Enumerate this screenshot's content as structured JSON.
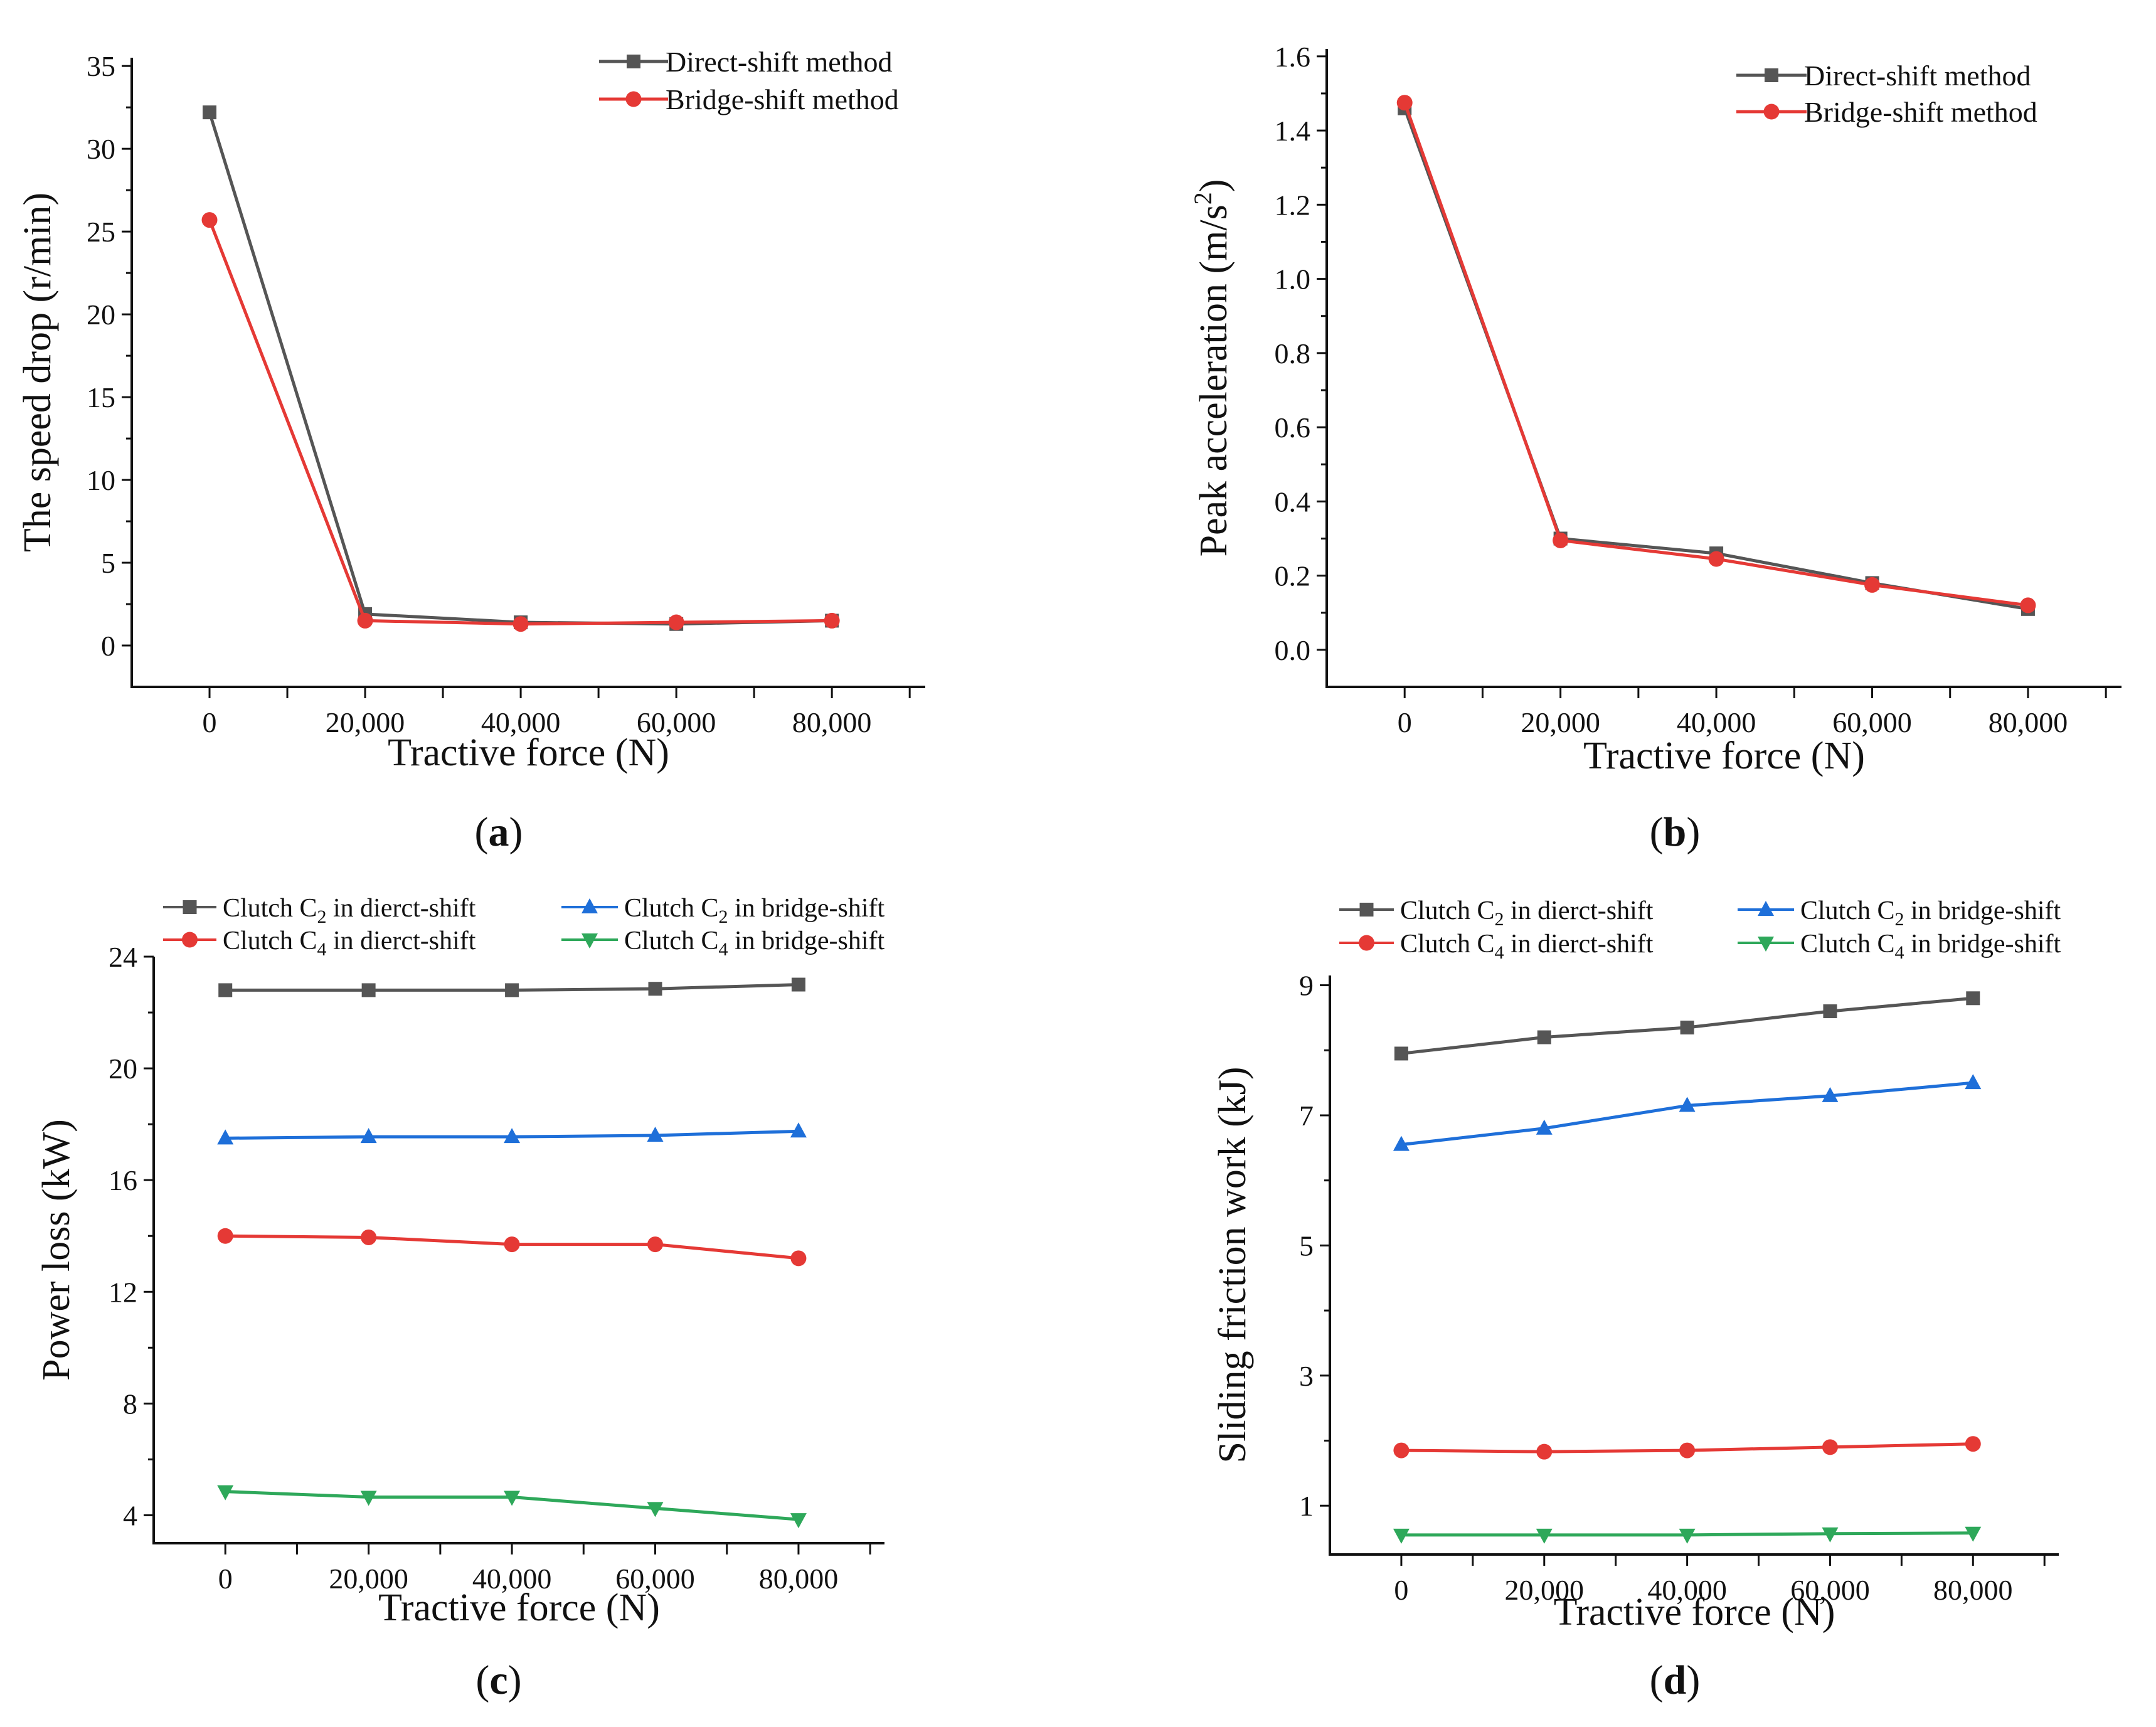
{
  "chart_data": [
    {
      "id": "a",
      "type": "line",
      "caption": "(a)",
      "caption_letter": "a",
      "xlabel": "Tractive force (N)",
      "ylabel": "The speed drop (r/min)",
      "x": [
        0,
        20000,
        40000,
        60000,
        80000
      ],
      "xticklabels": [
        "0",
        "20,000",
        "40,000",
        "60,000",
        "80,000"
      ],
      "xlim": [
        -10000,
        92000
      ],
      "ylim": [
        -2.5,
        35.5
      ],
      "yticks": [
        0,
        5,
        10,
        15,
        20,
        25,
        30,
        35
      ],
      "yticklabels": [
        "0",
        "5",
        "10",
        "15",
        "20",
        "25",
        "30",
        "35"
      ],
      "legend_position": "top-right",
      "series": [
        {
          "name": "Direct-shift method",
          "color": "#555555",
          "marker": "square",
          "values": [
            32.2,
            1.9,
            1.4,
            1.3,
            1.5
          ]
        },
        {
          "name": "Bridge-shift method",
          "color": "#e53935",
          "marker": "circle",
          "values": [
            25.7,
            1.5,
            1.3,
            1.4,
            1.5
          ]
        }
      ]
    },
    {
      "id": "b",
      "type": "line",
      "caption": "(b)",
      "caption_letter": "b",
      "xlabel": "Tractive force (N)",
      "ylabel_main": "Peak acceleration (m/s",
      "ylabel_sup": "2",
      "ylabel_end": ")",
      "x": [
        0,
        20000,
        40000,
        60000,
        80000
      ],
      "xticklabels": [
        "0",
        "20,000",
        "40,000",
        "60,000",
        "80,000"
      ],
      "xlim": [
        -10000,
        92000
      ],
      "ylim": [
        -0.1,
        1.62
      ],
      "yticks": [
        0,
        0.2,
        0.4,
        0.6,
        0.8,
        1.0,
        1.2,
        1.4,
        1.6
      ],
      "yticklabels": [
        "0.0",
        "0.2",
        "0.4",
        "0.6",
        "0.8",
        "1.0",
        "1.2",
        "1.4",
        "1.6"
      ],
      "legend_position": "top-right",
      "series": [
        {
          "name": "Direct-shift method",
          "color": "#555555",
          "marker": "square",
          "values": [
            1.46,
            0.3,
            0.26,
            0.18,
            0.11
          ]
        },
        {
          "name": "Bridge-shift method",
          "color": "#e53935",
          "marker": "circle",
          "values": [
            1.475,
            0.295,
            0.245,
            0.175,
            0.12
          ]
        }
      ]
    },
    {
      "id": "c",
      "type": "line",
      "caption": "(c)",
      "caption_letter": "c",
      "xlabel": "Tractive force (N)",
      "ylabel": "Power loss (kW)",
      "x": [
        0,
        20000,
        40000,
        60000,
        80000
      ],
      "xticklabels": [
        "0",
        "20,000",
        "40,000",
        "60,000",
        "80,000"
      ],
      "xlim": [
        -10000,
        92000
      ],
      "ylim": [
        3.0,
        24.0
      ],
      "yticks": [
        4,
        8,
        12,
        16,
        20,
        24
      ],
      "yticklabels": [
        "4",
        "8",
        "12",
        "16",
        "20",
        "24"
      ],
      "legend_position": "top",
      "series": [
        {
          "name": "Clutch C2 in dierct-shift",
          "label_pre": "Clutch C",
          "label_sub": "2",
          "label_post": " in dierct-shift",
          "color": "#555555",
          "marker": "square",
          "values": [
            22.8,
            22.8,
            22.8,
            22.85,
            23.0
          ]
        },
        {
          "name": "Clutch C4 in dierct-shift",
          "label_pre": "Clutch C",
          "label_sub": "4",
          "label_post": " in dierct-shift",
          "color": "#e53935",
          "marker": "circle",
          "values": [
            14.0,
            13.95,
            13.7,
            13.7,
            13.2
          ]
        },
        {
          "name": "Clutch C2 in bridge-shift",
          "label_pre": "Clutch C",
          "label_sub": "2",
          "label_post": " in bridge-shift",
          "color": "#1e6fd9",
          "marker": "triangle-up",
          "values": [
            17.5,
            17.55,
            17.55,
            17.6,
            17.75
          ]
        },
        {
          "name": "Clutch C4 in bridge-shift",
          "label_pre": "Clutch C",
          "label_sub": "4",
          "label_post": " in bridge-shift",
          "color": "#2ea85a",
          "marker": "triangle-down",
          "values": [
            4.85,
            4.65,
            4.65,
            4.25,
            3.85
          ]
        }
      ]
    },
    {
      "id": "d",
      "type": "line",
      "caption": "(d)",
      "caption_letter": "d",
      "xlabel": "Tractive force (N)",
      "ylabel": "Sliding friction work (kJ)",
      "x": [
        0,
        20000,
        40000,
        60000,
        80000
      ],
      "xticklabels": [
        "0",
        "20,000",
        "40,000",
        "60,000",
        "80,000"
      ],
      "xlim": [
        -10000,
        92000
      ],
      "ylim": [
        0.25,
        9.15
      ],
      "yticks": [
        1,
        3,
        5,
        7,
        9
      ],
      "yticklabels": [
        "1",
        "3",
        "5",
        "7",
        "9"
      ],
      "legend_position": "top",
      "series": [
        {
          "name": "Clutch C2 in dierct-shift",
          "label_pre": "Clutch C",
          "label_sub": "2",
          "label_post": " in dierct-shift",
          "color": "#555555",
          "marker": "square",
          "values": [
            7.95,
            8.2,
            8.35,
            8.6,
            8.8
          ]
        },
        {
          "name": "Clutch C4 in dierct-shift",
          "label_pre": "Clutch C",
          "label_sub": "4",
          "label_post": " in dierct-shift",
          "color": "#e53935",
          "marker": "circle",
          "values": [
            1.85,
            1.83,
            1.85,
            1.9,
            1.95
          ]
        },
        {
          "name": "Clutch C2 in bridge-shift",
          "label_pre": "Clutch C",
          "label_sub": "2",
          "label_post": " in bridge-shift",
          "color": "#1e6fd9",
          "marker": "triangle-up",
          "values": [
            6.55,
            6.8,
            7.15,
            7.3,
            7.5
          ]
        },
        {
          "name": "Clutch C4 in bridge-shift",
          "label_pre": "Clutch C",
          "label_sub": "4",
          "label_post": " in bridge-shift",
          "color": "#2ea85a",
          "marker": "triangle-down",
          "values": [
            0.55,
            0.55,
            0.55,
            0.57,
            0.58
          ]
        }
      ]
    }
  ]
}
